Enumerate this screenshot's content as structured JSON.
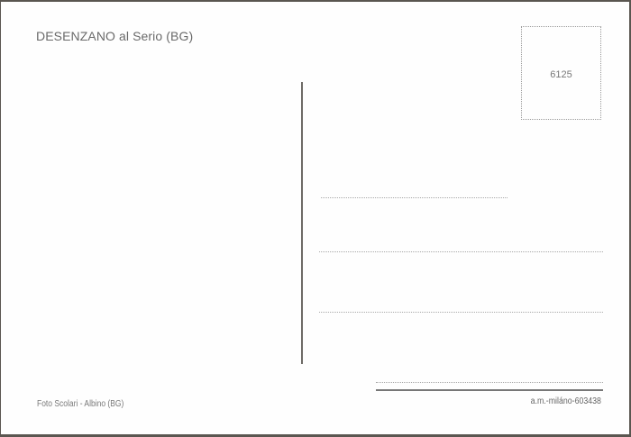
{
  "postcard": {
    "title": "DESENZANO al Serio (BG)",
    "stamp_box_number": "6125",
    "photo_credit": "Foto Scolari - Albino (BG)",
    "publisher_code": "a.m.-miláno-603438"
  }
}
